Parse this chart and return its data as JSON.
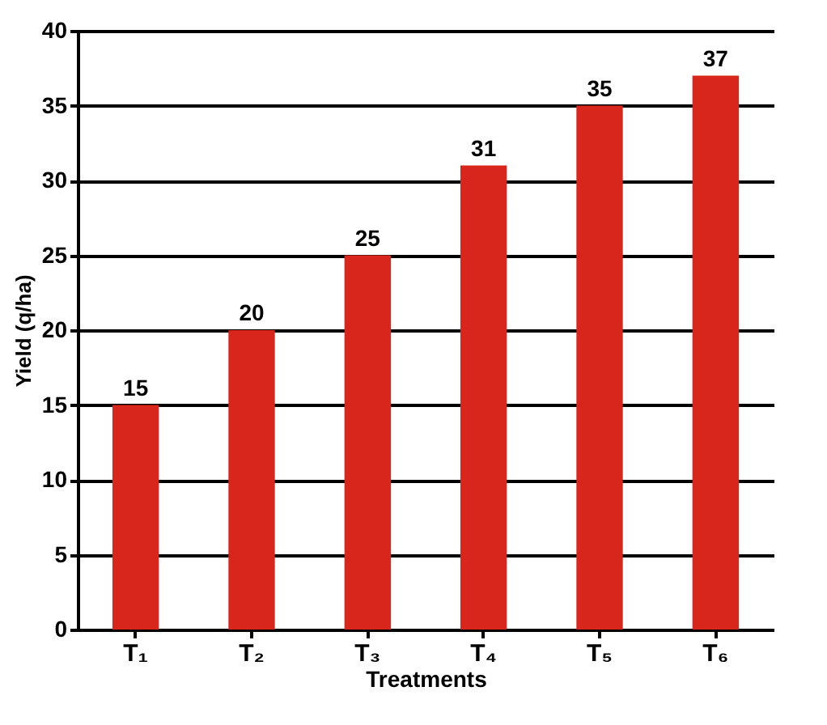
{
  "chart_data": {
    "type": "bar",
    "xlabel": "Treatments",
    "ylabel": "Yield (q/ha)",
    "categories": [
      "T₁",
      "T₂",
      "T₃",
      "T₄",
      "T₅",
      "T₆"
    ],
    "values": [
      15,
      20,
      25,
      31,
      35,
      37
    ],
    "color": "#d9261c",
    "ylim": [
      0,
      40
    ],
    "yticks": [
      0,
      5,
      10,
      15,
      20,
      25,
      30,
      35,
      40
    ],
    "grid": "y",
    "data_labels": true
  }
}
